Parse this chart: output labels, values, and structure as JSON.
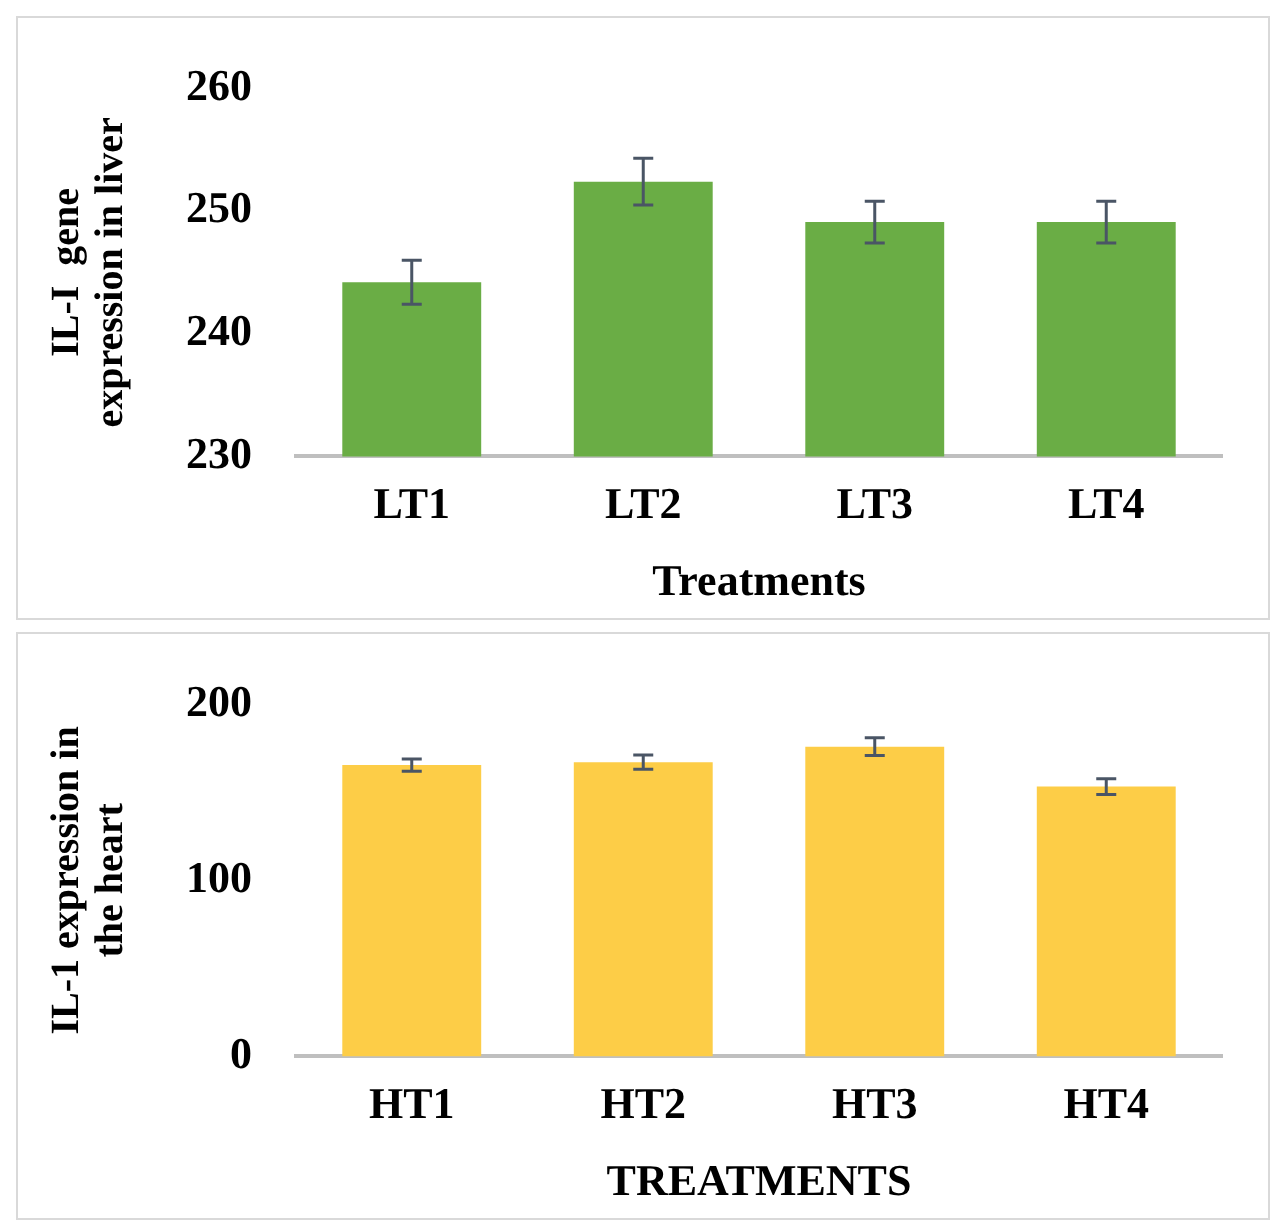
{
  "chart_data": [
    {
      "type": "bar",
      "xlabel": "Treatments",
      "ylabel": "IL-I  gene expression in liver",
      "categories": [
        "LT1",
        "LT2",
        "LT3",
        "LT4"
      ],
      "values": [
        244.2,
        252.4,
        249.1,
        249.1
      ],
      "errors": [
        1.8,
        1.9,
        1.7,
        1.7
      ],
      "color": "#6aad45",
      "ylim": [
        230,
        260
      ],
      "yticks": [
        230,
        240,
        250,
        260
      ],
      "grid": false
    },
    {
      "type": "bar",
      "xlabel": "TREATMENTS",
      "ylabel": "IL-1 expression in the heart",
      "categories": [
        "HT1",
        "HT2",
        "HT3",
        "HT4"
      ],
      "values": [
        165.5,
        167.2,
        176,
        153.3
      ],
      "errors": [
        3.5,
        4,
        5,
        4.5
      ],
      "color": "#fdcd47",
      "ylim": [
        0,
        200
      ],
      "yticks": [
        0,
        100,
        200
      ],
      "grid": false
    }
  ]
}
